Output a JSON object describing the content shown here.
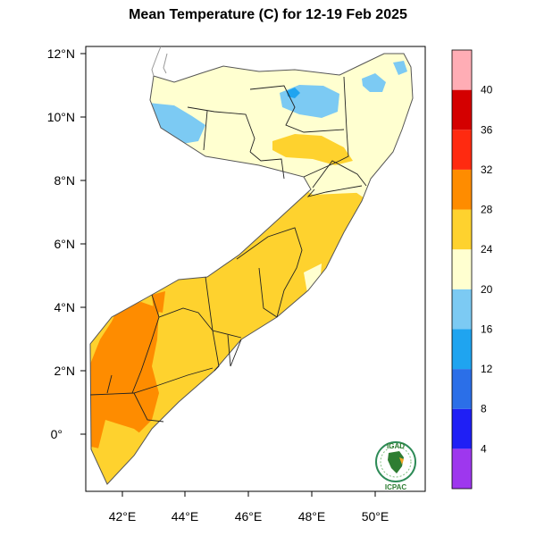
{
  "title": "Mean Temperature (C) for 12-19 Feb 2025",
  "lat_labels": [
    "12°N",
    "10°N",
    "8°N",
    "6°N",
    "4°N",
    "2°N",
    "0°"
  ],
  "lon_labels": [
    "42°E",
    "44°E",
    "46°E",
    "48°E",
    "50°E"
  ],
  "colorbar": {
    "labels": [
      "4",
      "8",
      "12",
      "16",
      "20",
      "24",
      "28",
      "32",
      "36",
      "40"
    ],
    "colors": [
      "#9e37ee",
      "#1f1ff5",
      "#2b6fe8",
      "#1fa4f0",
      "#7ccaf3",
      "#ffffd0",
      "#fed22e",
      "#fe8c00",
      "#ff2a10",
      "#d40000",
      "#ffadb5"
    ]
  },
  "logo": {
    "top_text": "IGAD",
    "bottom_text": "ICPAC"
  }
}
